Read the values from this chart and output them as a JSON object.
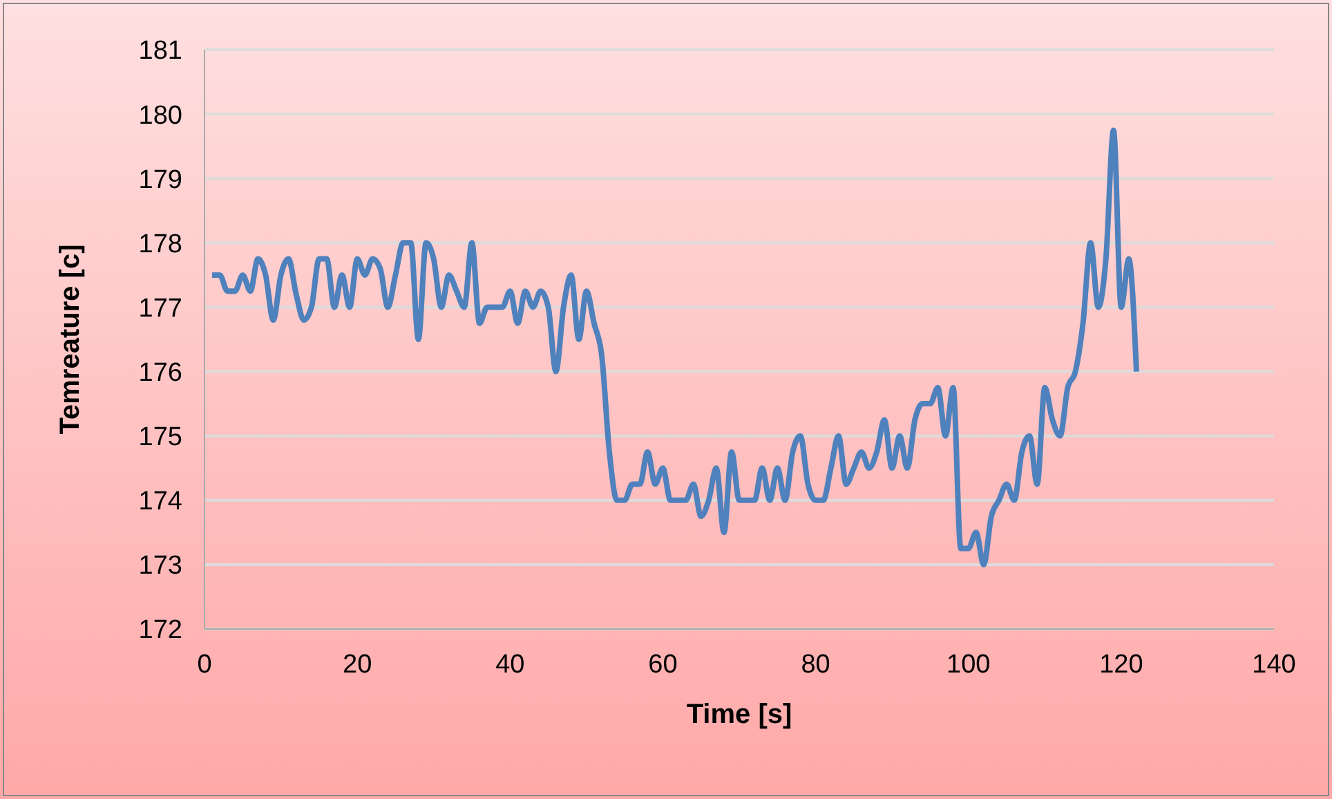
{
  "chart_data": {
    "type": "line",
    "xlabel": "Time [s]",
    "ylabel": "Temreature [c]",
    "x": [
      1,
      2,
      3,
      4,
      5,
      6,
      7,
      8,
      9,
      10,
      11,
      12,
      13,
      14,
      15,
      16,
      17,
      18,
      19,
      20,
      21,
      22,
      23,
      24,
      25,
      26,
      27,
      28,
      29,
      30,
      31,
      32,
      33,
      34,
      35,
      36,
      37,
      38,
      39,
      40,
      41,
      42,
      43,
      44,
      45,
      46,
      47,
      48,
      49,
      50,
      51,
      52,
      53,
      54,
      55,
      56,
      57,
      58,
      59,
      60,
      61,
      62,
      63,
      64,
      65,
      66,
      67,
      68,
      69,
      70,
      71,
      72,
      73,
      74,
      75,
      76,
      77,
      78,
      79,
      80,
      81,
      82,
      83,
      84,
      85,
      86,
      87,
      88,
      89,
      90,
      91,
      92,
      93,
      94,
      95,
      96,
      97,
      98,
      99,
      100,
      101,
      102,
      103,
      104,
      105,
      106,
      107,
      108,
      109,
      110,
      111,
      112,
      113,
      114,
      115,
      116,
      117,
      118,
      119,
      120,
      121,
      122
    ],
    "series": [
      {
        "color": "#4f81bd",
        "values": [
          177.5,
          177.5,
          177.25,
          177.25,
          177.5,
          177.25,
          177.75,
          177.5,
          176.8,
          177.5,
          177.75,
          177.2,
          176.8,
          177,
          177.75,
          177.75,
          177,
          177.5,
          177,
          177.75,
          177.5,
          177.75,
          177.6,
          177,
          177.5,
          178,
          178,
          176.5,
          178,
          177.75,
          177,
          177.5,
          177.25,
          177,
          178,
          176.75,
          177,
          177,
          177,
          177.25,
          176.75,
          177.25,
          177,
          177.25,
          177,
          176,
          177,
          177.5,
          176.5,
          177.25,
          176.75,
          176.25,
          174.75,
          174,
          174,
          174.25,
          174.25,
          174.75,
          174.25,
          174.5,
          174,
          174,
          174,
          174.25,
          173.75,
          174,
          174.5,
          173.5,
          174.75,
          174,
          174,
          174,
          174.5,
          174,
          174.5,
          174,
          174.75,
          175,
          174.25,
          174,
          174,
          174.5,
          175,
          174.25,
          174.5,
          174.75,
          174.5,
          174.75,
          175.25,
          174.5,
          175,
          174.5,
          175.25,
          175.5,
          175.5,
          175.75,
          175,
          175.75,
          173.25,
          173.25,
          173.5,
          173,
          173.75,
          174,
          174.25,
          174,
          174.75,
          175,
          174.25,
          175.75,
          175.25,
          175,
          175.75,
          176,
          176.75,
          178,
          177,
          177.75,
          179.75,
          177,
          177.75,
          176
        ]
      }
    ],
    "xlim": [
      0,
      140
    ],
    "xticks": [
      0,
      20,
      40,
      60,
      80,
      100,
      120,
      140
    ],
    "ylim": [
      172,
      181
    ],
    "yticks": [
      172,
      173,
      174,
      175,
      176,
      177,
      178,
      179,
      180,
      181
    ],
    "grid": "y",
    "legend": false,
    "marker": "none",
    "line_style": "solid"
  }
}
